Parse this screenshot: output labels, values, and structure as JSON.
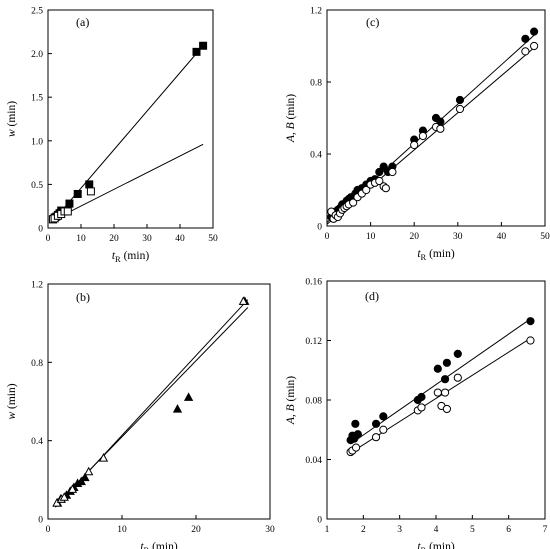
{
  "chart_data": [
    {
      "type": "scatter",
      "panel_label": "(a)",
      "xlabel": "t",
      "xlabel_sub": "R",
      "xlabel_unit": "(min)",
      "ylabel": "w",
      "ylabel_unit": "(min)",
      "xlim": [
        0,
        50
      ],
      "ylim": [
        0,
        2.5
      ],
      "xticks": [
        0,
        10,
        20,
        30,
        40,
        50
      ],
      "xtick_labels": [
        "0",
        "10",
        "20",
        "30",
        "40",
        "50"
      ],
      "yticks": [
        0,
        0.5,
        1.0,
        1.5,
        2.0,
        2.5
      ],
      "ytick_labels": [
        "0",
        "0.5",
        "1.0",
        "1.5",
        "2.0",
        "2.5"
      ],
      "series": [
        {
          "marker": "filled-square",
          "points": [
            [
              1.5,
              0.1
            ],
            [
              2,
              0.12
            ],
            [
              2.5,
              0.13
            ],
            [
              3,
              0.15
            ],
            [
              3.5,
              0.17
            ],
            [
              4,
              0.2
            ],
            [
              6.5,
              0.28
            ],
            [
              9,
              0.39
            ],
            [
              12.5,
              0.5
            ],
            [
              45,
              2.02
            ],
            [
              47,
              2.09
            ]
          ]
        },
        {
          "marker": "open-square",
          "points": [
            [
              1.5,
              0.1
            ],
            [
              2,
              0.11
            ],
            [
              3,
              0.14
            ],
            [
              4,
              0.16
            ],
            [
              5,
              0.19
            ],
            [
              6,
              0.19
            ],
            [
              13,
              0.42
            ]
          ]
        }
      ],
      "lines": [
        {
          "x": [
            1,
            47
          ],
          "y": [
            0.06,
            2.09
          ]
        },
        {
          "x": [
            1,
            47
          ],
          "y": [
            0.08,
            0.96
          ]
        }
      ]
    },
    {
      "type": "scatter",
      "panel_label": "(b)",
      "xlabel": "t",
      "xlabel_sub": "R",
      "xlabel_unit": "(min)",
      "ylabel": "w",
      "ylabel_unit": "(min)",
      "xlim": [
        0,
        30
      ],
      "ylim": [
        0,
        1.2
      ],
      "xticks": [
        0,
        10,
        20,
        30
      ],
      "xtick_labels": [
        "0",
        "10",
        "20",
        "30"
      ],
      "yticks": [
        0,
        0.4,
        0.8,
        1.2
      ],
      "ytick_labels": [
        "0",
        "0.4",
        "0.8",
        "1.2"
      ],
      "series": [
        {
          "marker": "filled-triangle",
          "points": [
            [
              1.3,
              0.08
            ],
            [
              1.7,
              0.1
            ],
            [
              2.5,
              0.12
            ],
            [
              3,
              0.14
            ],
            [
              3.5,
              0.16
            ],
            [
              4,
              0.18
            ],
            [
              4.5,
              0.19
            ],
            [
              5,
              0.21
            ],
            [
              17.5,
              0.56
            ],
            [
              19,
              0.62
            ],
            [
              26.6,
              1.11
            ]
          ]
        },
        {
          "marker": "open-triangle",
          "points": [
            [
              1.2,
              0.08
            ],
            [
              1.8,
              0.1
            ],
            [
              2.2,
              0.11
            ],
            [
              3.3,
              0.15
            ],
            [
              5.5,
              0.24
            ],
            [
              7.5,
              0.31
            ],
            [
              26.4,
              1.11
            ]
          ]
        }
      ],
      "lines": [
        {
          "x": [
            1,
            27
          ],
          "y": [
            0.06,
            1.12
          ]
        },
        {
          "x": [
            1,
            27
          ],
          "y": [
            0.07,
            1.08
          ]
        }
      ]
    },
    {
      "type": "scatter",
      "panel_label": "(c)",
      "xlabel": "t",
      "xlabel_sub": "R",
      "xlabel_unit": "(min)",
      "ylabel": "A, B",
      "ylabel_unit": "(min)",
      "xlim": [
        0,
        50
      ],
      "ylim": [
        0,
        1.2
      ],
      "xticks": [
        0,
        10,
        20,
        30,
        40,
        50
      ],
      "xtick_labels": [
        "0",
        "10",
        "20",
        "30",
        "40",
        "50"
      ],
      "yticks": [
        0,
        0.4,
        0.8,
        1.2
      ],
      "ytick_labels": [
        "0",
        "0.4",
        "0.8",
        "1.2"
      ],
      "series": [
        {
          "marker": "filled-circle",
          "points": [
            [
              1,
              0.05
            ],
            [
              1.5,
              0.06
            ],
            [
              2,
              0.08
            ],
            [
              2.5,
              0.09
            ],
            [
              3,
              0.1
            ],
            [
              3.5,
              0.12
            ],
            [
              4,
              0.12
            ],
            [
              4.5,
              0.14
            ],
            [
              5,
              0.15
            ],
            [
              5.5,
              0.16
            ],
            [
              6,
              0.16
            ],
            [
              6.5,
              0.18
            ],
            [
              7,
              0.2
            ],
            [
              8,
              0.21
            ],
            [
              9,
              0.23
            ],
            [
              10,
              0.25
            ],
            [
              11,
              0.26
            ],
            [
              12,
              0.3
            ],
            [
              13,
              0.33
            ],
            [
              14,
              0.3
            ],
            [
              15,
              0.33
            ],
            [
              20,
              0.48
            ],
            [
              22,
              0.53
            ],
            [
              25,
              0.6
            ],
            [
              26,
              0.58
            ],
            [
              30.5,
              0.7
            ],
            [
              45.5,
              1.04
            ],
            [
              47.5,
              1.08
            ]
          ]
        },
        {
          "marker": "open-circle",
          "points": [
            [
              1,
              0.08
            ],
            [
              1.5,
              0.04
            ],
            [
              2,
              0.06
            ],
            [
              2.5,
              0.05
            ],
            [
              3,
              0.07
            ],
            [
              3.5,
              0.09
            ],
            [
              4,
              0.1
            ],
            [
              4.5,
              0.11
            ],
            [
              5,
              0.12
            ],
            [
              6,
              0.13
            ],
            [
              7,
              0.16
            ],
            [
              8,
              0.18
            ],
            [
              9,
              0.2
            ],
            [
              10,
              0.23
            ],
            [
              11,
              0.24
            ],
            [
              12,
              0.25
            ],
            [
              13,
              0.22
            ],
            [
              13.5,
              0.21
            ],
            [
              15,
              0.3
            ],
            [
              20,
              0.45
            ],
            [
              22,
              0.5
            ],
            [
              25,
              0.55
            ],
            [
              26,
              0.54
            ],
            [
              30.5,
              0.65
            ],
            [
              45.5,
              0.97
            ],
            [
              47.5,
              1.0
            ]
          ]
        }
      ],
      "lines": [
        {
          "x": [
            0,
            47.5
          ],
          "y": [
            0.02,
            1.06
          ]
        },
        {
          "x": [
            0,
            47.5
          ],
          "y": [
            0.01,
            0.99
          ]
        }
      ]
    },
    {
      "type": "scatter",
      "panel_label": "(d)",
      "xlabel": "t",
      "xlabel_sub": "R",
      "xlabel_unit": "(min)",
      "ylabel": "A, B",
      "ylabel_unit": "(min)",
      "xlim": [
        1,
        7
      ],
      "ylim": [
        0,
        0.16
      ],
      "xticks": [
        1,
        2,
        3,
        4,
        5,
        6,
        7
      ],
      "xtick_labels": [
        "1",
        "2",
        "3",
        "4",
        "5",
        "6",
        "7"
      ],
      "yticks": [
        0,
        0.04,
        0.08,
        0.12,
        0.16
      ],
      "ytick_labels": [
        "0",
        "0.04",
        "0.08",
        "0.12",
        "0.16"
      ],
      "series": [
        {
          "marker": "filled-circle",
          "points": [
            [
              1.65,
              0.053
            ],
            [
              1.7,
              0.056
            ],
            [
              1.75,
              0.054
            ],
            [
              1.78,
              0.064
            ],
            [
              1.85,
              0.057
            ],
            [
              2.35,
              0.064
            ],
            [
              2.55,
              0.069
            ],
            [
              3.5,
              0.08
            ],
            [
              3.6,
              0.082
            ],
            [
              4.05,
              0.101
            ],
            [
              4.25,
              0.094
            ],
            [
              4.3,
              0.105
            ],
            [
              4.6,
              0.111
            ],
            [
              6.6,
              0.133
            ]
          ]
        },
        {
          "marker": "open-circle",
          "points": [
            [
              1.65,
              0.045
            ],
            [
              1.7,
              0.046
            ],
            [
              1.8,
              0.048
            ],
            [
              2.35,
              0.055
            ],
            [
              2.55,
              0.06
            ],
            [
              3.5,
              0.073
            ],
            [
              3.6,
              0.075
            ],
            [
              4.05,
              0.085
            ],
            [
              4.15,
              0.076
            ],
            [
              4.25,
              0.085
            ],
            [
              4.3,
              0.074
            ],
            [
              4.6,
              0.095
            ],
            [
              6.6,
              0.12
            ]
          ]
        }
      ],
      "lines": [
        {
          "x": [
            1.65,
            6.6
          ],
          "y": [
            0.0505,
            0.1345
          ]
        },
        {
          "x": [
            1.65,
            6.6
          ],
          "y": [
            0.0445,
            0.1215
          ]
        }
      ]
    }
  ]
}
